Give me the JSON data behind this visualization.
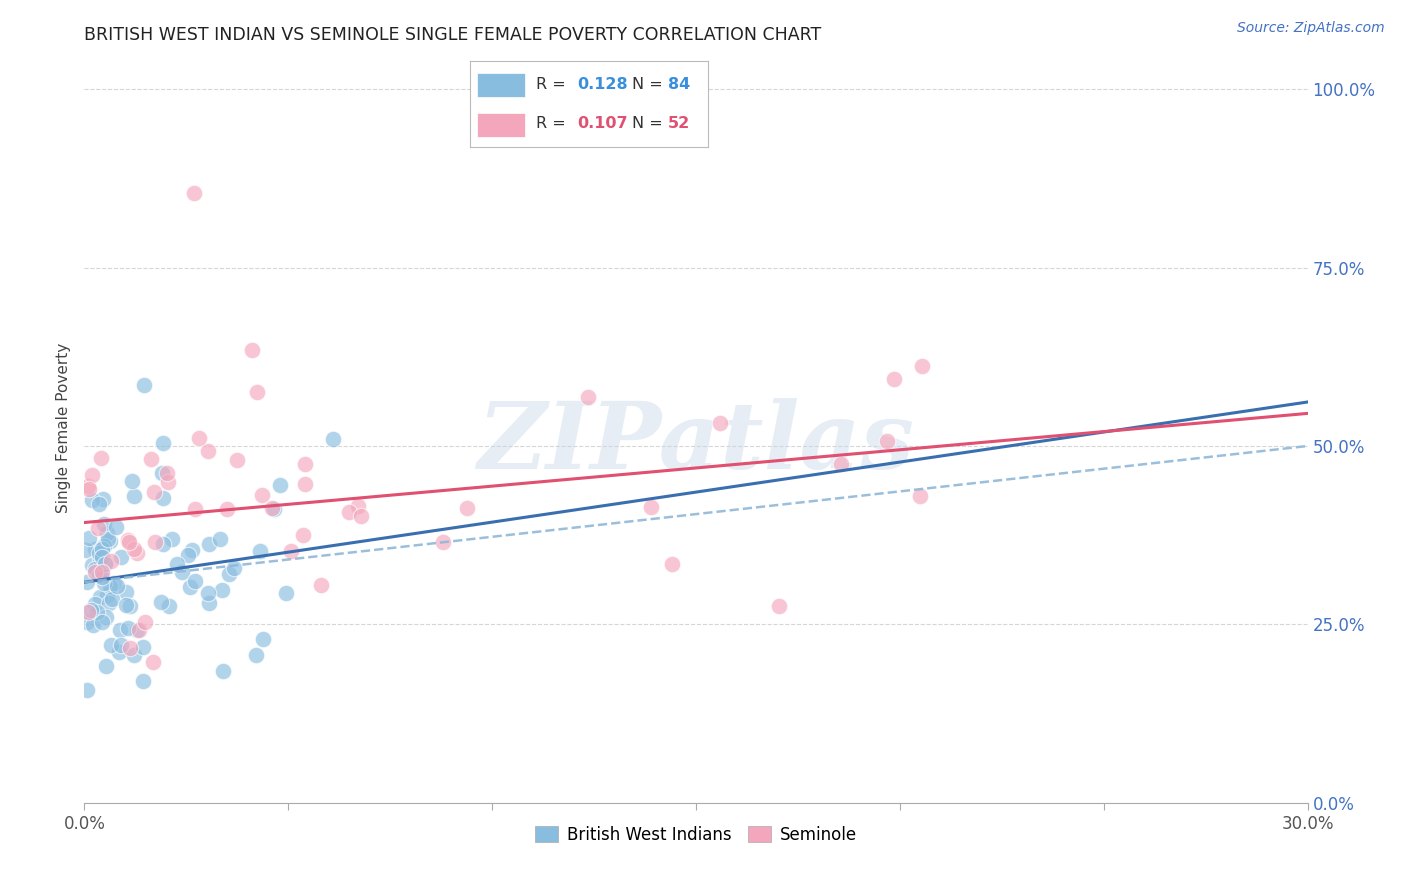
{
  "title": "BRITISH WEST INDIAN VS SEMINOLE SINGLE FEMALE POVERTY CORRELATION CHART",
  "source": "Source: ZipAtlas.com",
  "ylabel": "Single Female Poverty",
  "legend_label1": "British West Indians",
  "legend_label2": "Seminole",
  "r_bwi": 0.128,
  "n_bwi": 84,
  "r_sem": 0.107,
  "n_sem": 52,
  "bwi_color": "#89bde0",
  "sem_color": "#f4a7bc",
  "bwi_trendline_color": "#3a6faf",
  "bwi_dashed_color": "#90b8d8",
  "sem_trendline_color": "#e05070",
  "background_color": "#ffffff",
  "grid_color": "#cccccc",
  "watermark": "ZIPatlas",
  "x_min": 0.0,
  "x_max": 0.3,
  "y_min": 0.0,
  "y_max": 1.05,
  "yticks": [
    0.0,
    0.25,
    0.5,
    0.75,
    1.0
  ],
  "ytick_labels": [
    "0.0%",
    "25.0%",
    "50.0%",
    "75.0%",
    "100.0%"
  ],
  "xtick_left_label": "0.0%",
  "xtick_right_label": "30.0%",
  "legend_text_color_bwi": "#3a8fdc",
  "legend_text_color_sem": "#e05070",
  "title_color": "#222222",
  "source_color": "#4472c4"
}
